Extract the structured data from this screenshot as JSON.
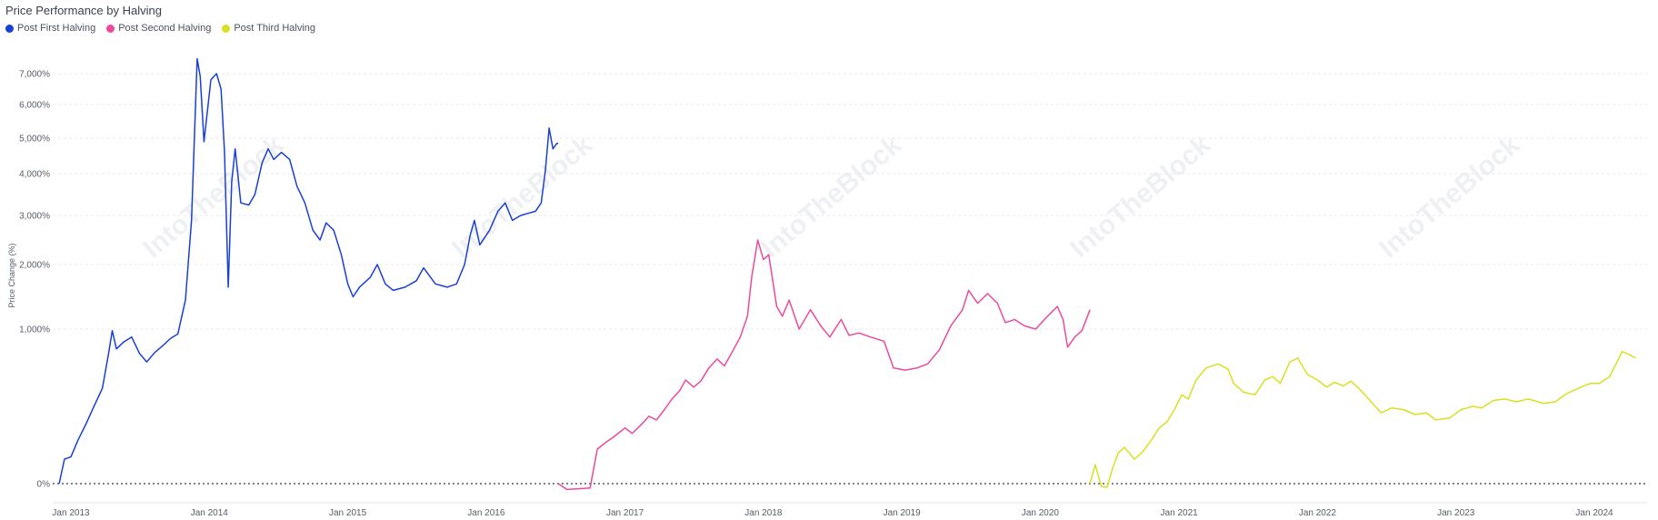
{
  "chart_data": {
    "type": "line",
    "title": "Price Performance by Halving",
    "ylabel": "Price Change (%)",
    "xlabel": "",
    "y_scale": "log-like",
    "ylim": [
      -50,
      8500
    ],
    "xlim": [
      "2012-12-01",
      "2024-08-01"
    ],
    "y_ticks": [
      {
        "value": 0,
        "label": "0%"
      },
      {
        "value": 1000,
        "label": "1,000%"
      },
      {
        "value": 2000,
        "label": "2,000%"
      },
      {
        "value": 3000,
        "label": "3,000%"
      },
      {
        "value": 4000,
        "label": "4,000%"
      },
      {
        "value": 5000,
        "label": "5,000%"
      },
      {
        "value": 6000,
        "label": "6,000%"
      },
      {
        "value": 7000,
        "label": "7,000%"
      }
    ],
    "x_ticks": [
      {
        "date": "2013-01-01",
        "label": "Jan 2013"
      },
      {
        "date": "2014-01-01",
        "label": "Jan 2014"
      },
      {
        "date": "2015-01-01",
        "label": "Jan 2015"
      },
      {
        "date": "2016-01-01",
        "label": "Jan 2016"
      },
      {
        "date": "2017-01-01",
        "label": "Jan 2017"
      },
      {
        "date": "2018-01-01",
        "label": "Jan 2018"
      },
      {
        "date": "2019-01-01",
        "label": "Jan 2019"
      },
      {
        "date": "2020-01-01",
        "label": "Jan 2020"
      },
      {
        "date": "2021-01-01",
        "label": "Jan 2021"
      },
      {
        "date": "2022-01-01",
        "label": "Jan 2022"
      },
      {
        "date": "2023-01-01",
        "label": "Jan 2023"
      },
      {
        "date": "2024-01-01",
        "label": "Jan 2024"
      }
    ],
    "grid": true,
    "zero_line": "dotted",
    "legend_position": "top-left",
    "series": [
      {
        "name": "Post First Halving",
        "color": "#1a3fd6",
        "points": [
          [
            "2012-12-01",
            0
          ],
          [
            "2012-12-15",
            25
          ],
          [
            "2013-01-01",
            30
          ],
          [
            "2013-01-20",
            80
          ],
          [
            "2013-02-10",
            150
          ],
          [
            "2013-03-01",
            240
          ],
          [
            "2013-03-25",
            380
          ],
          [
            "2013-04-10",
            700
          ],
          [
            "2013-04-20",
            980
          ],
          [
            "2013-05-01",
            760
          ],
          [
            "2013-05-20",
            840
          ],
          [
            "2013-06-10",
            900
          ],
          [
            "2013-07-01",
            710
          ],
          [
            "2013-07-20",
            620
          ],
          [
            "2013-08-10",
            720
          ],
          [
            "2013-09-01",
            800
          ],
          [
            "2013-09-20",
            880
          ],
          [
            "2013-10-10",
            940
          ],
          [
            "2013-10-30",
            1450
          ],
          [
            "2013-11-15",
            2900
          ],
          [
            "2013-11-30",
            7600
          ],
          [
            "2013-12-08",
            6900
          ],
          [
            "2013-12-18",
            4900
          ],
          [
            "2014-01-05",
            6800
          ],
          [
            "2014-01-20",
            7000
          ],
          [
            "2014-02-01",
            6500
          ],
          [
            "2014-02-10",
            4600
          ],
          [
            "2014-02-20",
            1650
          ],
          [
            "2014-03-01",
            3800
          ],
          [
            "2014-03-10",
            4700
          ],
          [
            "2014-03-25",
            3300
          ],
          [
            "2014-04-15",
            3250
          ],
          [
            "2014-05-01",
            3500
          ],
          [
            "2014-05-20",
            4300
          ],
          [
            "2014-06-05",
            4700
          ],
          [
            "2014-06-20",
            4400
          ],
          [
            "2014-07-10",
            4600
          ],
          [
            "2014-08-01",
            4400
          ],
          [
            "2014-08-20",
            3700
          ],
          [
            "2014-09-10",
            3300
          ],
          [
            "2014-10-01",
            2700
          ],
          [
            "2014-10-20",
            2500
          ],
          [
            "2014-11-05",
            2850
          ],
          [
            "2014-11-25",
            2700
          ],
          [
            "2014-12-15",
            2200
          ],
          [
            "2015-01-01",
            1700
          ],
          [
            "2015-01-15",
            1500
          ],
          [
            "2015-02-01",
            1650
          ],
          [
            "2015-03-01",
            1800
          ],
          [
            "2015-03-20",
            2000
          ],
          [
            "2015-04-10",
            1700
          ],
          [
            "2015-05-01",
            1600
          ],
          [
            "2015-06-01",
            1650
          ],
          [
            "2015-07-01",
            1750
          ],
          [
            "2015-07-20",
            1950
          ],
          [
            "2015-08-20",
            1700
          ],
          [
            "2015-09-20",
            1650
          ],
          [
            "2015-10-15",
            1700
          ],
          [
            "2015-11-05",
            2000
          ],
          [
            "2015-11-20",
            2600
          ],
          [
            "2015-12-01",
            2900
          ],
          [
            "2015-12-15",
            2400
          ],
          [
            "2016-01-10",
            2700
          ],
          [
            "2016-02-01",
            3100
          ],
          [
            "2016-02-20",
            3300
          ],
          [
            "2016-03-10",
            2900
          ],
          [
            "2016-04-01",
            3000
          ],
          [
            "2016-04-20",
            3050
          ],
          [
            "2016-05-10",
            3100
          ],
          [
            "2016-05-25",
            3300
          ],
          [
            "2016-06-05",
            4100
          ],
          [
            "2016-06-15",
            5300
          ],
          [
            "2016-06-25",
            4700
          ],
          [
            "2016-07-05",
            4850
          ],
          [
            "2016-07-09",
            4850
          ]
        ]
      },
      {
        "name": "Post Second Halving",
        "color": "#ea4a9e",
        "points": [
          [
            "2016-07-09",
            0
          ],
          [
            "2016-08-01",
            -40
          ],
          [
            "2016-09-01",
            -35
          ],
          [
            "2016-10-01",
            -30
          ],
          [
            "2016-10-20",
            50
          ],
          [
            "2016-11-10",
            70
          ],
          [
            "2016-12-01",
            90
          ],
          [
            "2017-01-01",
            130
          ],
          [
            "2017-01-20",
            105
          ],
          [
            "2017-02-15",
            150
          ],
          [
            "2017-03-05",
            190
          ],
          [
            "2017-03-25",
            170
          ],
          [
            "2017-04-15",
            230
          ],
          [
            "2017-05-05",
            300
          ],
          [
            "2017-05-25",
            360
          ],
          [
            "2017-06-10",
            450
          ],
          [
            "2017-07-01",
            390
          ],
          [
            "2017-07-20",
            440
          ],
          [
            "2017-08-10",
            560
          ],
          [
            "2017-09-01",
            650
          ],
          [
            "2017-09-20",
            580
          ],
          [
            "2017-10-10",
            720
          ],
          [
            "2017-11-01",
            900
          ],
          [
            "2017-11-20",
            1200
          ],
          [
            "2017-12-01",
            1800
          ],
          [
            "2017-12-17",
            2500
          ],
          [
            "2018-01-01",
            2100
          ],
          [
            "2018-01-15",
            2200
          ],
          [
            "2018-02-05",
            1350
          ],
          [
            "2018-02-20",
            1200
          ],
          [
            "2018-03-10",
            1450
          ],
          [
            "2018-04-05",
            1000
          ],
          [
            "2018-05-05",
            1300
          ],
          [
            "2018-06-01",
            1050
          ],
          [
            "2018-06-25",
            900
          ],
          [
            "2018-07-25",
            1150
          ],
          [
            "2018-08-15",
            920
          ],
          [
            "2018-09-10",
            950
          ],
          [
            "2018-10-10",
            900
          ],
          [
            "2018-11-15",
            850
          ],
          [
            "2018-12-10",
            560
          ],
          [
            "2019-01-10",
            540
          ],
          [
            "2019-02-10",
            560
          ],
          [
            "2019-03-10",
            600
          ],
          [
            "2019-04-10",
            750
          ],
          [
            "2019-05-10",
            1050
          ],
          [
            "2019-06-10",
            1300
          ],
          [
            "2019-06-26",
            1600
          ],
          [
            "2019-07-20",
            1400
          ],
          [
            "2019-08-15",
            1550
          ],
          [
            "2019-09-10",
            1400
          ],
          [
            "2019-10-01",
            1100
          ],
          [
            "2019-10-25",
            1150
          ],
          [
            "2019-11-20",
            1050
          ],
          [
            "2019-12-20",
            1000
          ],
          [
            "2020-01-20",
            1200
          ],
          [
            "2020-02-15",
            1350
          ],
          [
            "2020-03-01",
            1150
          ],
          [
            "2020-03-13",
            780
          ],
          [
            "2020-04-01",
            900
          ],
          [
            "2020-04-20",
            980
          ],
          [
            "2020-05-11",
            1300
          ]
        ]
      },
      {
        "name": "Post Third Halving",
        "color": "#d9e021",
        "points": [
          [
            "2020-05-11",
            0
          ],
          [
            "2020-05-25",
            15
          ],
          [
            "2020-06-10",
            -20
          ],
          [
            "2020-06-25",
            -25
          ],
          [
            "2020-07-10",
            10
          ],
          [
            "2020-07-25",
            40
          ],
          [
            "2020-08-10",
            55
          ],
          [
            "2020-09-05",
            25
          ],
          [
            "2020-09-25",
            40
          ],
          [
            "2020-10-20",
            80
          ],
          [
            "2020-11-10",
            130
          ],
          [
            "2020-11-30",
            160
          ],
          [
            "2020-12-20",
            230
          ],
          [
            "2021-01-08",
            330
          ],
          [
            "2021-01-25",
            300
          ],
          [
            "2021-02-15",
            450
          ],
          [
            "2021-03-13",
            560
          ],
          [
            "2021-04-14",
            600
          ],
          [
            "2021-05-10",
            550
          ],
          [
            "2021-05-25",
            420
          ],
          [
            "2021-06-20",
            350
          ],
          [
            "2021-07-20",
            330
          ],
          [
            "2021-08-15",
            450
          ],
          [
            "2021-09-05",
            480
          ],
          [
            "2021-09-25",
            420
          ],
          [
            "2021-10-20",
            620
          ],
          [
            "2021-11-10",
            660
          ],
          [
            "2021-12-05",
            500
          ],
          [
            "2022-01-01",
            450
          ],
          [
            "2022-01-25",
            390
          ],
          [
            "2022-02-15",
            430
          ],
          [
            "2022-03-10",
            400
          ],
          [
            "2022-03-30",
            440
          ],
          [
            "2022-04-20",
            380
          ],
          [
            "2022-05-12",
            310
          ],
          [
            "2022-06-18",
            210
          ],
          [
            "2022-07-15",
            240
          ],
          [
            "2022-08-15",
            230
          ],
          [
            "2022-09-15",
            200
          ],
          [
            "2022-10-15",
            210
          ],
          [
            "2022-11-09",
            170
          ],
          [
            "2022-12-15",
            180
          ],
          [
            "2023-01-15",
            230
          ],
          [
            "2023-02-15",
            250
          ],
          [
            "2023-03-10",
            240
          ],
          [
            "2023-04-10",
            290
          ],
          [
            "2023-05-10",
            300
          ],
          [
            "2023-06-10",
            280
          ],
          [
            "2023-07-10",
            300
          ],
          [
            "2023-08-20",
            270
          ],
          [
            "2023-09-20",
            280
          ],
          [
            "2023-10-20",
            340
          ],
          [
            "2023-11-20",
            380
          ],
          [
            "2023-12-20",
            420
          ],
          [
            "2024-01-15",
            420
          ],
          [
            "2024-02-10",
            480
          ],
          [
            "2024-03-01",
            620
          ],
          [
            "2024-03-14",
            730
          ],
          [
            "2024-04-01",
            700
          ],
          [
            "2024-04-19",
            660
          ]
        ]
      }
    ]
  },
  "watermark": "IntoTheBlock"
}
